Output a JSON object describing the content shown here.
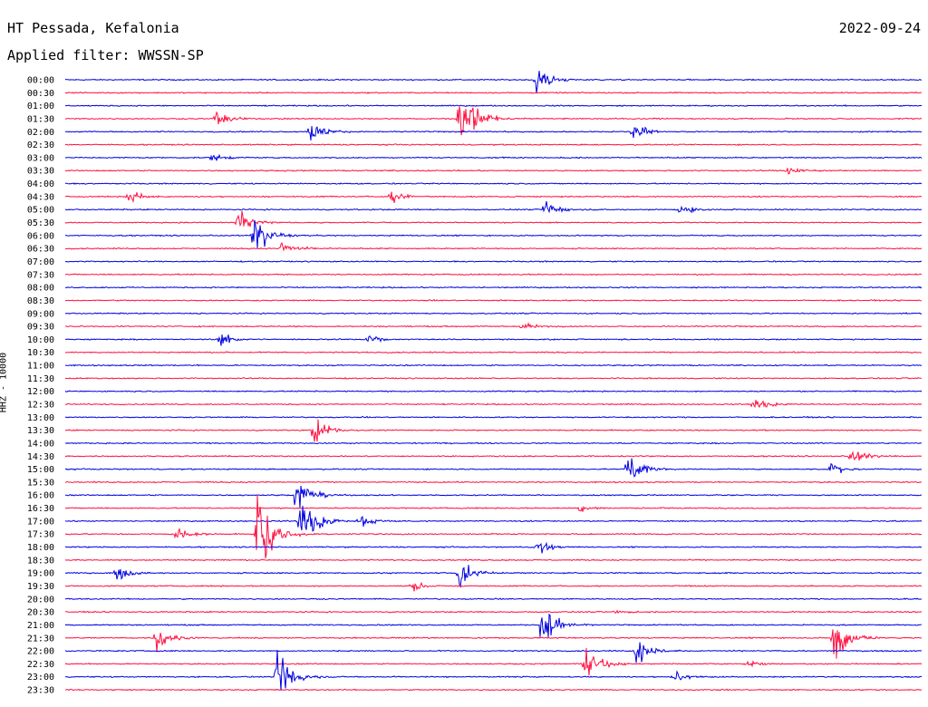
{
  "header": {
    "station": "HT Pessada, Kefalonia",
    "filter": "Applied filter: WWSSN-SP",
    "date": "2022-09-24"
  },
  "colors": {
    "blue": "#0000e0",
    "red": "#ff1040",
    "background": "#ffffff",
    "text": "#000000"
  },
  "chart_data": {
    "type": "line",
    "title": "HT Pessada, Kefalonia",
    "subtitle": "Applied filter: WWSSN-SP",
    "ylabel": "HHZ - 10000",
    "xlabel": "",
    "grid": false,
    "legend": "none",
    "series_colors_alternate": [
      "blue",
      "red"
    ],
    "tick_labels": [
      "00:00",
      "00:30",
      "01:00",
      "01:30",
      "02:00",
      "02:30",
      "03:00",
      "03:30",
      "04:00",
      "04:30",
      "05:00",
      "05:30",
      "06:00",
      "06:30",
      "07:00",
      "07:30",
      "08:00",
      "08:30",
      "09:00",
      "09:30",
      "10:00",
      "10:30",
      "11:00",
      "11:30",
      "12:00",
      "12:30",
      "13:00",
      "13:30",
      "14:00",
      "14:30",
      "15:00",
      "15:30",
      "16:00",
      "16:30",
      "17:00",
      "17:30",
      "18:00",
      "18:30",
      "19:00",
      "19:30",
      "20:00",
      "20:30",
      "21:00",
      "21:30",
      "22:00",
      "22:30",
      "23:00",
      "23:30"
    ],
    "events": [
      {
        "trace": "00:00",
        "minute": 16.5,
        "amplitude": 0.9
      },
      {
        "trace": "01:30",
        "minute": 5.3,
        "amplitude": 0.6
      },
      {
        "trace": "01:30",
        "minute": 13.8,
        "amplitude": 2.8
      },
      {
        "trace": "02:00",
        "minute": 8.6,
        "amplitude": 0.8
      },
      {
        "trace": "02:00",
        "minute": 19.9,
        "amplitude": 0.7
      },
      {
        "trace": "03:00",
        "minute": 5.1,
        "amplitude": 0.3
      },
      {
        "trace": "03:30",
        "minute": 25.3,
        "amplitude": 0.4
      },
      {
        "trace": "04:30",
        "minute": 2.2,
        "amplitude": 0.5
      },
      {
        "trace": "04:30",
        "minute": 11.4,
        "amplitude": 0.5
      },
      {
        "trace": "05:00",
        "minute": 16.8,
        "amplitude": 0.6
      },
      {
        "trace": "05:00",
        "minute": 21.5,
        "amplitude": 0.4
      },
      {
        "trace": "05:30",
        "minute": 6.0,
        "amplitude": 0.9
      },
      {
        "trace": "06:00",
        "minute": 6.6,
        "amplitude": 1.6
      },
      {
        "trace": "06:30",
        "minute": 7.5,
        "amplitude": 0.6
      },
      {
        "trace": "09:30",
        "minute": 16.0,
        "amplitude": 0.3
      },
      {
        "trace": "10:00",
        "minute": 5.4,
        "amplitude": 0.5
      },
      {
        "trace": "10:00",
        "minute": 10.6,
        "amplitude": 0.3
      },
      {
        "trace": "12:30",
        "minute": 24.1,
        "amplitude": 0.6
      },
      {
        "trace": "13:30",
        "minute": 8.7,
        "amplitude": 1.0
      },
      {
        "trace": "14:30",
        "minute": 27.5,
        "amplitude": 0.7
      },
      {
        "trace": "15:00",
        "minute": 19.7,
        "amplitude": 1.3
      },
      {
        "trace": "15:00",
        "minute": 26.8,
        "amplitude": 0.5
      },
      {
        "trace": "16:00",
        "minute": 8.1,
        "amplitude": 1.2
      },
      {
        "trace": "16:30",
        "minute": 18.0,
        "amplitude": 0.3
      },
      {
        "trace": "17:00",
        "minute": 8.2,
        "amplitude": 2.3
      },
      {
        "trace": "17:00",
        "minute": 10.3,
        "amplitude": 0.4
      },
      {
        "trace": "17:30",
        "minute": 3.9,
        "amplitude": 0.5
      },
      {
        "trace": "17:30",
        "minute": 6.7,
        "amplitude": 3.4
      },
      {
        "trace": "18:00",
        "minute": 16.5,
        "amplitude": 0.5
      },
      {
        "trace": "19:00",
        "minute": 1.8,
        "amplitude": 0.5
      },
      {
        "trace": "19:00",
        "minute": 13.8,
        "amplitude": 1.1
      },
      {
        "trace": "19:30",
        "minute": 12.1,
        "amplitude": 0.4
      },
      {
        "trace": "20:30",
        "minute": 19.3,
        "amplitude": 0.2
      },
      {
        "trace": "21:00",
        "minute": 16.7,
        "amplitude": 1.5
      },
      {
        "trace": "21:30",
        "minute": 3.2,
        "amplitude": 0.9
      },
      {
        "trace": "21:30",
        "minute": 26.9,
        "amplitude": 2.6
      },
      {
        "trace": "22:00",
        "minute": 20.0,
        "amplitude": 1.0
      },
      {
        "trace": "22:30",
        "minute": 18.2,
        "amplitude": 1.2
      },
      {
        "trace": "22:30",
        "minute": 23.9,
        "amplitude": 0.3
      },
      {
        "trace": "23:00",
        "minute": 7.4,
        "amplitude": 1.8
      },
      {
        "trace": "23:00",
        "minute": 21.3,
        "amplitude": 0.4
      }
    ]
  }
}
